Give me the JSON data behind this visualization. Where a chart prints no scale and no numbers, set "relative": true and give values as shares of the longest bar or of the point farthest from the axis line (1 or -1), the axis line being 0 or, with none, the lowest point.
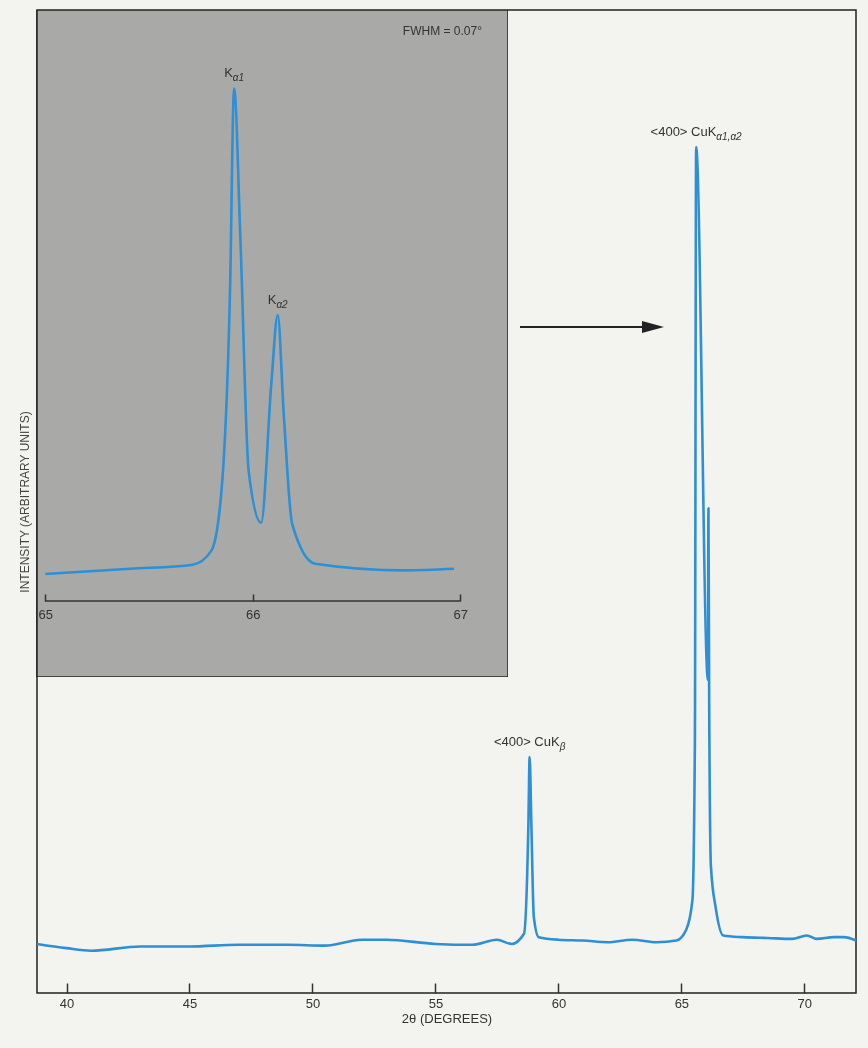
{
  "chart_data": [
    {
      "type": "line",
      "xlabel": "2θ (DEGREES)",
      "ylabel": "INTENSITY (ARBITRARY UNITS)",
      "relative": true,
      "xlim": [
        38.8,
        72.1
      ],
      "xticks": [
        40,
        45,
        50,
        55,
        60,
        65,
        70
      ],
      "x": [
        38.8,
        40,
        41,
        43,
        45,
        47,
        49,
        50.5,
        52,
        53,
        55,
        56.5,
        57.5,
        58.1,
        58.6,
        58.78,
        58.83,
        58.9,
        59.0,
        59.2,
        60,
        61,
        62,
        63,
        64,
        64.8,
        65.2,
        65.45,
        65.55,
        65.6,
        66.08,
        66.1,
        66.13,
        66.2,
        66.4,
        66.7,
        67.5,
        68.5,
        69.5,
        70.1,
        70.5,
        71.2,
        71.6,
        72.1
      ],
      "series": [
        {
          "color": "#2d8fd5",
          "values": [
            0.058,
            0.053,
            0.05,
            0.055,
            0.055,
            0.057,
            0.057,
            0.056,
            0.063,
            0.063,
            0.058,
            0.057,
            0.063,
            0.058,
            0.07,
            0.2,
            0.279,
            0.2,
            0.09,
            0.066,
            0.063,
            0.062,
            0.06,
            0.063,
            0.06,
            0.062,
            0.075,
            0.11,
            0.3,
            1.0,
            0.37,
            0.573,
            0.346,
            0.15,
            0.1,
            0.068,
            0.066,
            0.065,
            0.064,
            0.068,
            0.064,
            0.066,
            0.066,
            0.062
          ]
        }
      ],
      "annotations": [
        {
          "text": "<400> CuK$_{α1,α2}$",
          "x": 65.6,
          "y": 1.0
        },
        {
          "text": "<400> CuK$_{β}$",
          "x": 58.83,
          "y": 0.279
        }
      ]
    },
    {
      "type": "line",
      "relative": true,
      "xlim": [
        64.96,
        67.23
      ],
      "xticks": [
        65,
        66,
        67
      ],
      "x": [
        65.0,
        65.41,
        65.71,
        65.8,
        65.85,
        65.89,
        65.91,
        65.94,
        65.98,
        66.04,
        66.09,
        66.12,
        66.15,
        66.19,
        66.3,
        66.73,
        66.97
      ],
      "series": [
        {
          "color": "#2d8fd5",
          "values": [
            0.053,
            0.063,
            0.071,
            0.098,
            0.22,
            0.6,
            1.0,
            0.71,
            0.254,
            0.153,
            0.428,
            0.558,
            0.359,
            0.15,
            0.073,
            0.06,
            0.063
          ]
        }
      ],
      "annotations": [
        "FWHM = 0.07°",
        {
          "text": "K$_{α1}$",
          "x": 65.91,
          "y": 1.0
        },
        {
          "text": "K$_{α2}$",
          "x": 66.12,
          "y": 0.558
        }
      ]
    }
  ]
}
